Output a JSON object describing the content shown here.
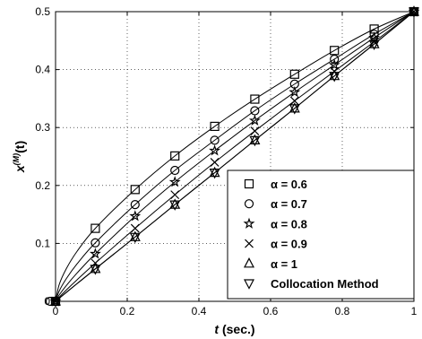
{
  "chart_data": {
    "type": "line",
    "xlabel_main": "t",
    "xlabel_rest": " (sec.)",
    "ylabel_main": "x",
    "ylabel_sup": "(M)",
    "ylabel_rest": "(t)",
    "xlim": [
      0,
      1
    ],
    "ylim": [
      0,
      0.5
    ],
    "xticks": [
      0,
      0.2,
      0.4,
      0.6,
      0.8,
      1
    ],
    "xtick_labels": [
      "0",
      "0.2",
      "0.4",
      "0.6",
      "0.8",
      "1"
    ],
    "yticks": [
      0,
      0.1,
      0.2,
      0.3,
      0.4,
      0.5
    ],
    "ytick_labels": [
      "0",
      "0.1",
      "0.2",
      "0.3",
      "0.4",
      "0.5"
    ],
    "grid": true,
    "legend_position": "bottom-right",
    "marker_x": [
      0,
      0.111,
      0.222,
      0.333,
      0.444,
      0.556,
      0.667,
      0.778,
      0.889,
      1.0
    ],
    "series": [
      {
        "name": "α = 0.6",
        "marker": "square",
        "values": [
          0,
          0.126,
          0.193,
          0.251,
          0.302,
          0.349,
          0.392,
          0.433,
          0.47,
          0.5
        ]
      },
      {
        "name": "α = 0.7",
        "marker": "circle",
        "values": [
          0,
          0.101,
          0.167,
          0.226,
          0.278,
          0.329,
          0.375,
          0.418,
          0.461,
          0.5
        ]
      },
      {
        "name": "α = 0.8",
        "marker": "star",
        "values": [
          0,
          0.082,
          0.147,
          0.206,
          0.26,
          0.312,
          0.361,
          0.408,
          0.455,
          0.5
        ]
      },
      {
        "name": "α = 0.9",
        "marker": "x",
        "values": [
          0,
          0.066,
          0.126,
          0.184,
          0.24,
          0.294,
          0.346,
          0.397,
          0.448,
          0.5
        ]
      },
      {
        "name": "α = 1",
        "marker": "triangle-up",
        "values": [
          0,
          0.056,
          0.111,
          0.167,
          0.222,
          0.278,
          0.333,
          0.389,
          0.444,
          0.5
        ]
      },
      {
        "name": "Collocation Method",
        "marker": "triangle-down",
        "values": [
          0,
          0.056,
          0.111,
          0.167,
          0.222,
          0.278,
          0.333,
          0.389,
          0.444,
          0.5
        ]
      }
    ]
  }
}
